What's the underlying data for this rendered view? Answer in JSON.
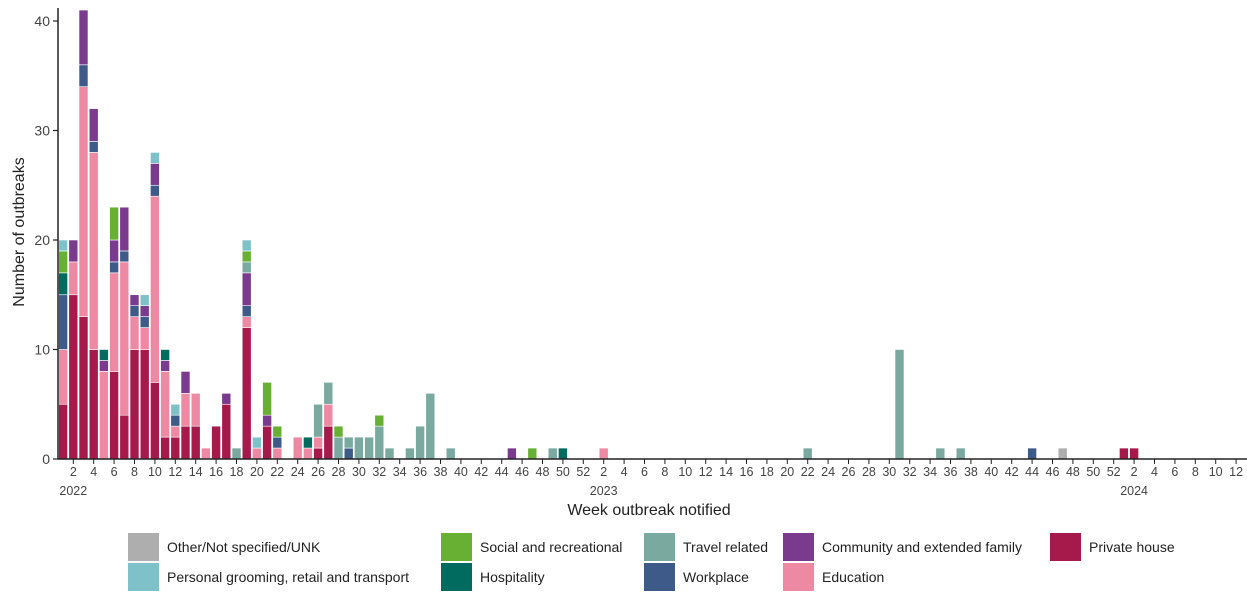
{
  "chart_data": {
    "type": "bar",
    "stacked": true,
    "xlabel": "Week outbreak notified",
    "ylabel": "Number of outbreaks",
    "ylim": [
      0,
      41
    ],
    "yticks": [
      0,
      10,
      20,
      30,
      40
    ],
    "grid": false,
    "legend_position": "bottom",
    "x": [
      "2022-W01",
      "2022-W02",
      "2022-W03",
      "2022-W04",
      "2022-W05",
      "2022-W06",
      "2022-W07",
      "2022-W08",
      "2022-W09",
      "2022-W10",
      "2022-W11",
      "2022-W12",
      "2022-W13",
      "2022-W14",
      "2022-W15",
      "2022-W16",
      "2022-W17",
      "2022-W18",
      "2022-W19",
      "2022-W20",
      "2022-W21",
      "2022-W22",
      "2022-W23",
      "2022-W24",
      "2022-W25",
      "2022-W26",
      "2022-W27",
      "2022-W28",
      "2022-W29",
      "2022-W30",
      "2022-W31",
      "2022-W32",
      "2022-W33",
      "2022-W34",
      "2022-W35",
      "2022-W36",
      "2022-W37",
      "2022-W38",
      "2022-W39",
      "2022-W40",
      "2022-W41",
      "2022-W42",
      "2022-W43",
      "2022-W44",
      "2022-W45",
      "2022-W46",
      "2022-W47",
      "2022-W48",
      "2022-W49",
      "2022-W50",
      "2022-W51",
      "2022-W52",
      "2023-W01",
      "2023-W02",
      "2023-W03",
      "2023-W04",
      "2023-W05",
      "2023-W06",
      "2023-W07",
      "2023-W08",
      "2023-W09",
      "2023-W10",
      "2023-W11",
      "2023-W12",
      "2023-W13",
      "2023-W14",
      "2023-W15",
      "2023-W16",
      "2023-W17",
      "2023-W18",
      "2023-W19",
      "2023-W20",
      "2023-W21",
      "2023-W22",
      "2023-W23",
      "2023-W24",
      "2023-W25",
      "2023-W26",
      "2023-W27",
      "2023-W28",
      "2023-W29",
      "2023-W30",
      "2023-W31",
      "2023-W32",
      "2023-W33",
      "2023-W34",
      "2023-W35",
      "2023-W36",
      "2023-W37",
      "2023-W38",
      "2023-W39",
      "2023-W40",
      "2023-W41",
      "2023-W42",
      "2023-W43",
      "2023-W44",
      "2023-W45",
      "2023-W46",
      "2023-W47",
      "2023-W48",
      "2023-W49",
      "2023-W50",
      "2023-W51",
      "2023-W52",
      "2024-W01",
      "2024-W02",
      "2024-W03",
      "2024-W04",
      "2024-W05",
      "2024-W06",
      "2024-W07",
      "2024-W08",
      "2024-W09",
      "2024-W10",
      "2024-W11",
      "2024-W12"
    ],
    "xticks": [
      "2",
      "4",
      "6",
      "8",
      "10",
      "12",
      "14",
      "16",
      "18",
      "20",
      "22",
      "24",
      "26",
      "28",
      "30",
      "32",
      "34",
      "36",
      "38",
      "40",
      "42",
      "44",
      "46",
      "48",
      "50",
      "52",
      "2",
      "4",
      "6",
      "8",
      "10",
      "12",
      "14",
      "16",
      "18",
      "20",
      "22",
      "24",
      "26",
      "28",
      "30",
      "32",
      "34",
      "36",
      "38",
      "40",
      "42",
      "44",
      "46",
      "48",
      "50",
      "52",
      "2",
      "4",
      "6",
      "8",
      "10",
      "12"
    ],
    "year_labels": [
      "2022",
      "2023",
      "2024"
    ],
    "series": [
      {
        "name": "Private house",
        "color": "#A6194B",
        "points": [
          [
            1,
            5
          ],
          [
            2,
            15
          ],
          [
            3,
            13
          ],
          [
            4,
            10
          ],
          [
            6,
            8
          ],
          [
            7,
            4
          ],
          [
            8,
            10
          ],
          [
            9,
            10
          ],
          [
            10,
            7
          ],
          [
            11,
            2
          ],
          [
            12,
            2
          ],
          [
            13,
            3
          ],
          [
            14,
            3
          ],
          [
            16,
            3
          ],
          [
            17,
            5
          ],
          [
            19,
            12
          ],
          [
            21,
            3
          ],
          [
            26,
            1
          ],
          [
            27,
            3
          ],
          [
            105,
            1
          ],
          [
            106,
            1
          ]
        ]
      },
      {
        "name": "Education",
        "color": "#EE89A4",
        "points": [
          [
            1,
            5
          ],
          [
            2,
            3
          ],
          [
            3,
            21
          ],
          [
            4,
            18
          ],
          [
            5,
            8
          ],
          [
            6,
            9
          ],
          [
            7,
            14
          ],
          [
            8,
            3
          ],
          [
            9,
            2
          ],
          [
            10,
            17
          ],
          [
            11,
            6
          ],
          [
            12,
            1
          ],
          [
            13,
            3
          ],
          [
            14,
            3
          ],
          [
            15,
            1
          ],
          [
            19,
            1
          ],
          [
            20,
            1
          ],
          [
            22,
            1
          ],
          [
            24,
            2
          ],
          [
            25,
            1
          ],
          [
            26,
            1
          ],
          [
            27,
            2
          ],
          [
            54,
            1
          ]
        ]
      },
      {
        "name": "Workplace",
        "color": "#3E5A89",
        "points": [
          [
            1,
            5
          ],
          [
            3,
            2
          ],
          [
            4,
            1
          ],
          [
            6,
            1
          ],
          [
            7,
            1
          ],
          [
            8,
            1
          ],
          [
            9,
            1
          ],
          [
            10,
            1
          ],
          [
            12,
            1
          ],
          [
            19,
            1
          ],
          [
            22,
            1
          ],
          [
            29,
            1
          ],
          [
            96,
            1
          ]
        ]
      },
      {
        "name": "Community and extended family",
        "color": "#7A3A8E",
        "points": [
          [
            2,
            2
          ],
          [
            3,
            5
          ],
          [
            4,
            3
          ],
          [
            5,
            1
          ],
          [
            6,
            2
          ],
          [
            7,
            4
          ],
          [
            8,
            1
          ],
          [
            9,
            1
          ],
          [
            10,
            2
          ],
          [
            11,
            1
          ],
          [
            13,
            2
          ],
          [
            17,
            1
          ],
          [
            19,
            3
          ],
          [
            21,
            1
          ],
          [
            45,
            1
          ]
        ]
      },
      {
        "name": "Travel related",
        "color": "#79A99F",
        "points": [
          [
            18,
            1
          ],
          [
            19,
            1
          ],
          [
            26,
            3
          ],
          [
            27,
            2
          ],
          [
            28,
            2
          ],
          [
            29,
            1
          ],
          [
            30,
            2
          ],
          [
            31,
            2
          ],
          [
            32,
            3
          ],
          [
            33,
            1
          ],
          [
            35,
            1
          ],
          [
            36,
            3
          ],
          [
            37,
            6
          ],
          [
            39,
            1
          ],
          [
            49,
            1
          ],
          [
            74,
            1
          ],
          [
            83,
            10
          ],
          [
            87,
            1
          ],
          [
            89,
            1
          ]
        ]
      },
      {
        "name": "Hospitality",
        "color": "#006B5E",
        "points": [
          [
            1,
            2
          ],
          [
            5,
            1
          ],
          [
            11,
            1
          ],
          [
            25,
            1
          ],
          [
            50,
            1
          ]
        ]
      },
      {
        "name": "Social and recreational",
        "color": "#68B033",
        "points": [
          [
            1,
            2
          ],
          [
            6,
            3
          ],
          [
            19,
            1
          ],
          [
            21,
            3
          ],
          [
            22,
            1
          ],
          [
            28,
            1
          ],
          [
            32,
            1
          ],
          [
            47,
            1
          ]
        ]
      },
      {
        "name": "Personal grooming, retail and transport",
        "color": "#7FC1C9",
        "points": [
          [
            1,
            1
          ],
          [
            9,
            1
          ],
          [
            10,
            1
          ],
          [
            12,
            1
          ],
          [
            19,
            1
          ],
          [
            20,
            1
          ]
        ]
      },
      {
        "name": "Other/Not specified/UNK",
        "color": "#AEAEAE",
        "points": [
          [
            99,
            1
          ]
        ]
      }
    ],
    "legend": {
      "row1": [
        {
          "name": "Other/Not specified/UNK",
          "color": "#AEAEAE"
        },
        {
          "name": "Social and recreational",
          "color": "#68B033"
        },
        {
          "name": "Travel related",
          "color": "#79A99F"
        },
        {
          "name": "Community and extended family",
          "color": "#7A3A8E"
        },
        {
          "name": "Private house",
          "color": "#A6194B"
        }
      ],
      "row2": [
        {
          "name": "Personal grooming, retail and transport",
          "color": "#7FC1C9"
        },
        {
          "name": "Hospitality",
          "color": "#006B5E"
        },
        {
          "name": "Workplace",
          "color": "#3E5A89"
        },
        {
          "name": "Education",
          "color": "#EE89A4"
        }
      ]
    }
  }
}
